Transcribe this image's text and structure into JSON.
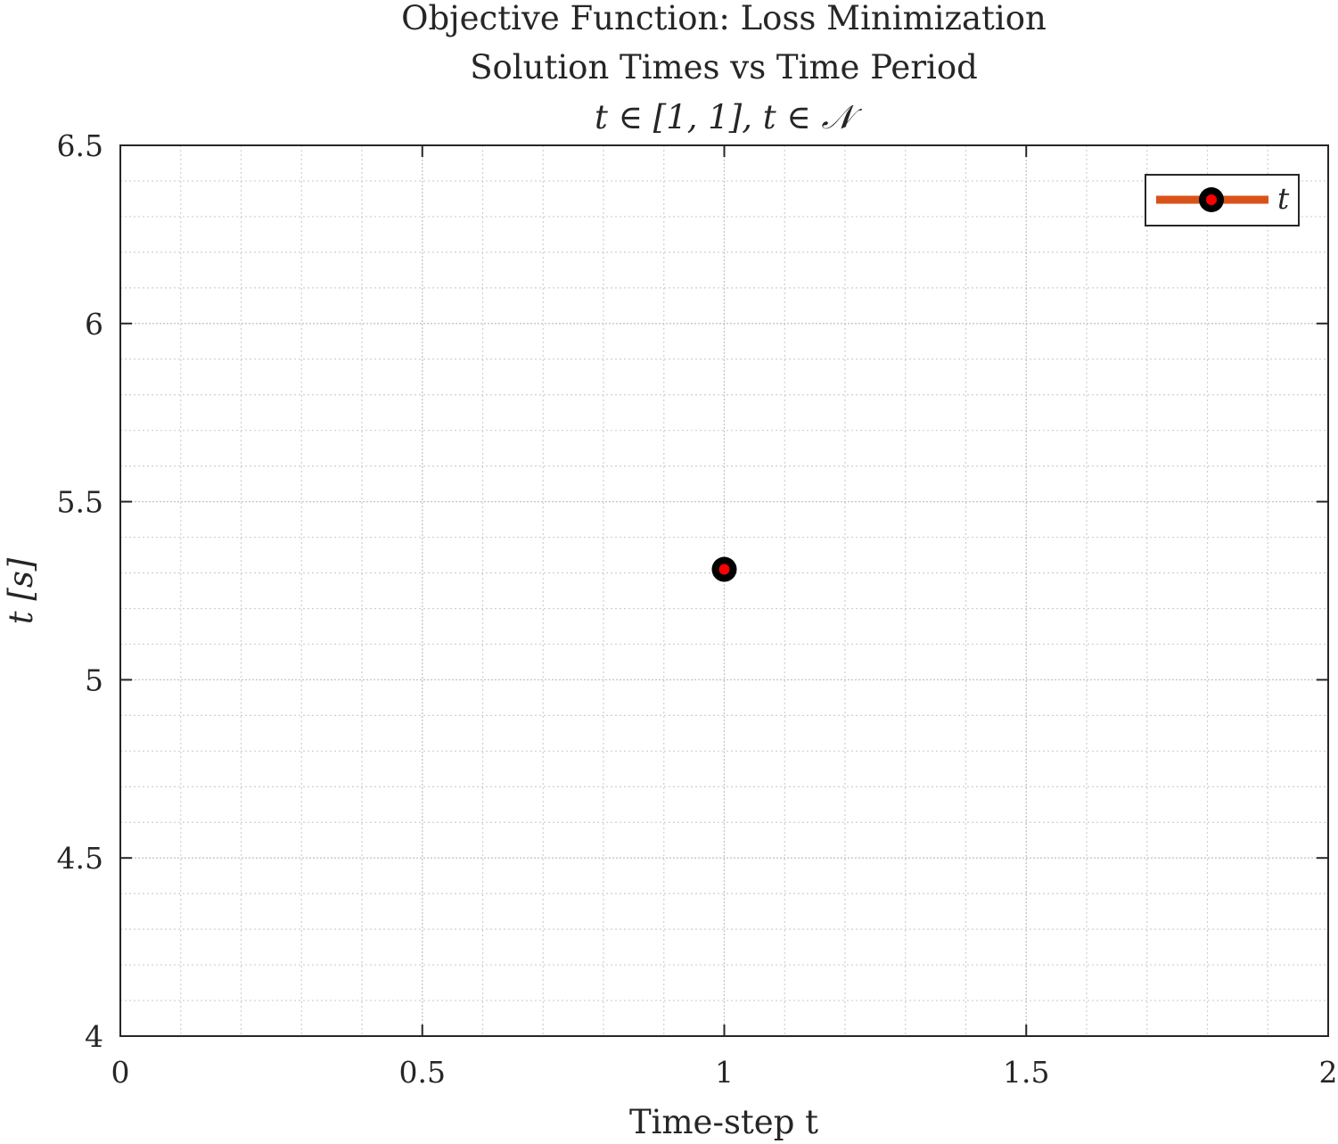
{
  "chart_data": {
    "type": "line",
    "title_lines": [
      "Objective Function: Loss Minimization",
      "Solution Times vs Time Period",
      "t ∈ [1, 1], t ∈ 𝒩"
    ],
    "xlabel": "Time-step t",
    "ylabel": "t [s]",
    "xlim": [
      0,
      2
    ],
    "ylim": [
      4,
      6.5
    ],
    "x_ticks": [
      0,
      0.5,
      1,
      1.5,
      2
    ],
    "x_tick_labels": [
      "0",
      "0.5",
      "1",
      "1.5",
      "2"
    ],
    "y_ticks": [
      4,
      4.5,
      5,
      5.5,
      6,
      6.5
    ],
    "y_tick_labels": [
      "4",
      "4.5",
      "5",
      "5.5",
      "6",
      "6.5"
    ],
    "x_minor_step": 0.1,
    "y_minor_step": 0.1,
    "grid": true,
    "minor_grid": true,
    "legend_position": "top-right",
    "series": [
      {
        "name": "t",
        "x": [
          1
        ],
        "y": [
          5.31
        ],
        "line_color": "#D95319",
        "marker_edge_color": "#000000",
        "marker_face_color": "#FF0000"
      }
    ]
  }
}
